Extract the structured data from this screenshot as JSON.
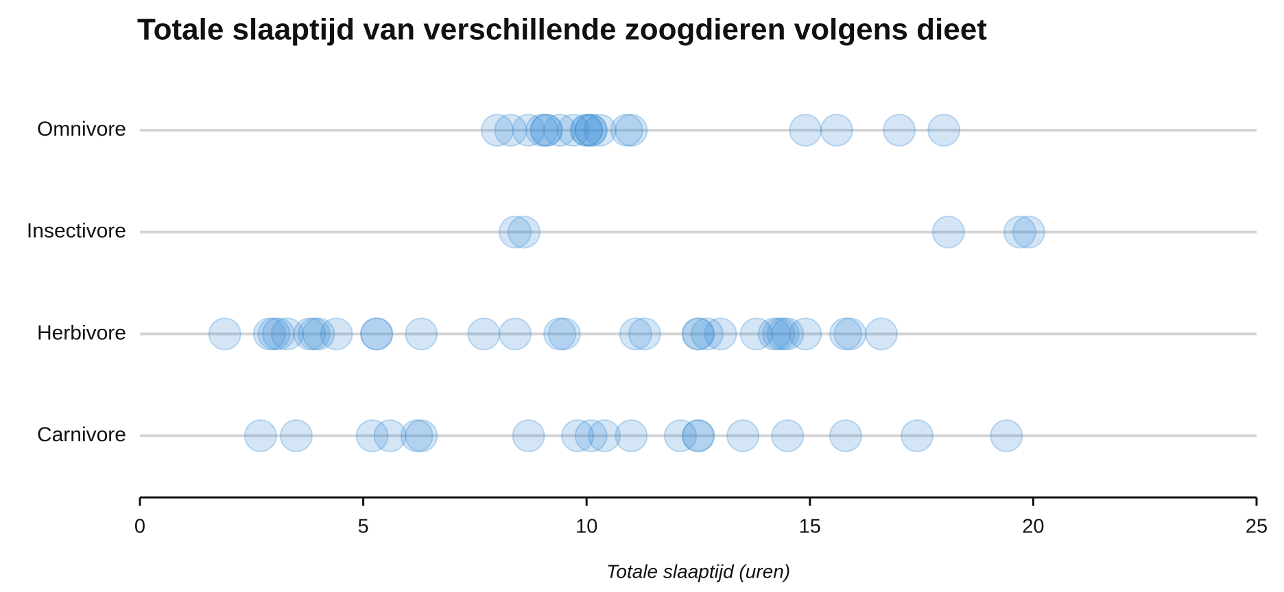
{
  "chart_data": {
    "type": "strip",
    "title": "Totale slaaptijd van verschillende zoogdieren volgens dieet",
    "x_label": "Totale slaaptijd (uren)",
    "categories": [
      "Carnivore",
      "Herbivore",
      "Insectivore",
      "Omnivore"
    ],
    "values": [
      [
        2.7,
        3.5,
        5.2,
        5.6,
        6.2,
        6.3,
        8.7,
        9.8,
        10.1,
        10.4,
        11.0,
        12.1,
        12.5,
        12.5,
        13.5,
        14.5,
        15.8,
        17.4,
        19.4
      ],
      [
        1.9,
        2.9,
        3.0,
        3.1,
        3.3,
        3.8,
        3.9,
        4.0,
        4.4,
        5.3,
        5.3,
        6.3,
        7.7,
        8.4,
        9.4,
        9.5,
        11.1,
        11.3,
        12.5,
        12.5,
        12.7,
        13.0,
        13.8,
        14.2,
        14.3,
        14.4,
        14.5,
        14.9,
        15.8,
        15.9,
        16.6
      ],
      [
        8.4,
        8.6,
        18.1,
        19.7,
        19.9
      ],
      [
        8.0,
        8.3,
        8.7,
        9.0,
        9.1,
        9.1,
        9.4,
        9.7,
        10.0,
        10.0,
        10.1,
        10.1,
        10.3,
        10.9,
        11.0,
        14.9,
        15.6,
        17.0,
        18.0
      ]
    ],
    "xlim": [
      0,
      25
    ],
    "xticks": [
      0,
      5,
      10,
      15,
      20,
      25
    ],
    "color": "#3d8fd4",
    "grid": true
  }
}
